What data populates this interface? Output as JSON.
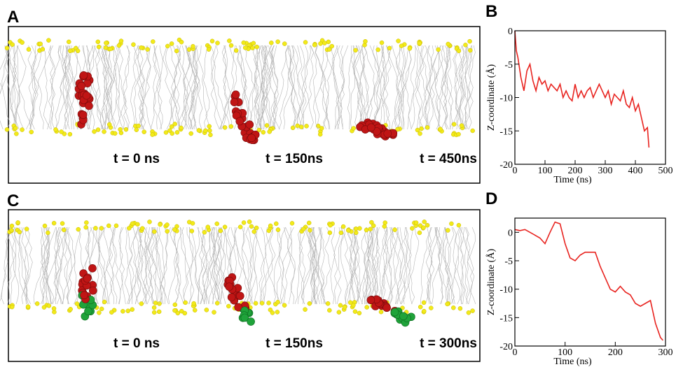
{
  "panels": [
    {
      "label": "A",
      "snapshots": [
        "t = 0 ns",
        "t = 150ns",
        "t = 450ns"
      ]
    },
    {
      "label": "C",
      "snapshots": [
        "t = 0 ns",
        "t = 150ns",
        "t = 300ns"
      ]
    }
  ],
  "chart_data": [
    {
      "type": "line",
      "label": "B",
      "xlabel": "Time (ns)",
      "ylabel": "Z-coordinate (Å)",
      "x": [
        0,
        5,
        10,
        20,
        30,
        40,
        50,
        60,
        70,
        80,
        90,
        100,
        110,
        120,
        130,
        140,
        150,
        160,
        170,
        180,
        190,
        200,
        210,
        220,
        230,
        240,
        250,
        260,
        270,
        280,
        290,
        300,
        310,
        320,
        330,
        340,
        350,
        360,
        370,
        380,
        390,
        400,
        410,
        420,
        430,
        440,
        445
      ],
      "series": [
        {
          "color": "#e8231f",
          "values": [
            0,
            -3,
            -4,
            -7,
            -9,
            -6,
            -5,
            -7.5,
            -9,
            -7,
            -8,
            -7.5,
            -9,
            -8,
            -8.5,
            -9,
            -8,
            -10,
            -9,
            -10,
            -10.5,
            -8,
            -10,
            -9,
            -10,
            -9,
            -8.5,
            -10,
            -9,
            -8,
            -9,
            -10,
            -9,
            -11,
            -9.5,
            -10,
            -10.5,
            -9,
            -11,
            -11.5,
            -10,
            -12,
            -11,
            -13,
            -15,
            -14.5,
            -17.5
          ]
        }
      ],
      "xlim": [
        0,
        500
      ],
      "xticks": [
        0,
        100,
        200,
        300,
        400,
        500
      ],
      "ylim": [
        -20,
        0
      ],
      "yticks": [
        0,
        -5,
        -10,
        -15,
        -20
      ]
    },
    {
      "type": "line",
      "label": "D",
      "xlabel": "Time (ns)",
      "ylabel": "Z-coordinate (Å)",
      "x": [
        0,
        10,
        20,
        30,
        40,
        50,
        60,
        70,
        80,
        90,
        100,
        110,
        120,
        130,
        140,
        150,
        160,
        170,
        180,
        190,
        200,
        210,
        220,
        230,
        240,
        250,
        260,
        270,
        280,
        290,
        295
      ],
      "series": [
        {
          "color": "#e8231f",
          "values": [
            0.5,
            0.3,
            0.5,
            0,
            -0.5,
            -1,
            -2,
            0,
            1.8,
            1.5,
            -2,
            -4.5,
            -5,
            -4,
            -3.5,
            -3.5,
            -3.5,
            -6,
            -8,
            -10,
            -10.5,
            -9.5,
            -10.5,
            -11,
            -12.5,
            -13,
            -12.5,
            -12,
            -16,
            -18.5,
            -19
          ]
        }
      ],
      "xlim": [
        0,
        300
      ],
      "xticks": [
        0,
        100,
        200,
        300
      ],
      "ylim": [
        -20,
        2.5
      ],
      "yticks": [
        0,
        -5,
        -10,
        -15,
        -20
      ]
    }
  ]
}
